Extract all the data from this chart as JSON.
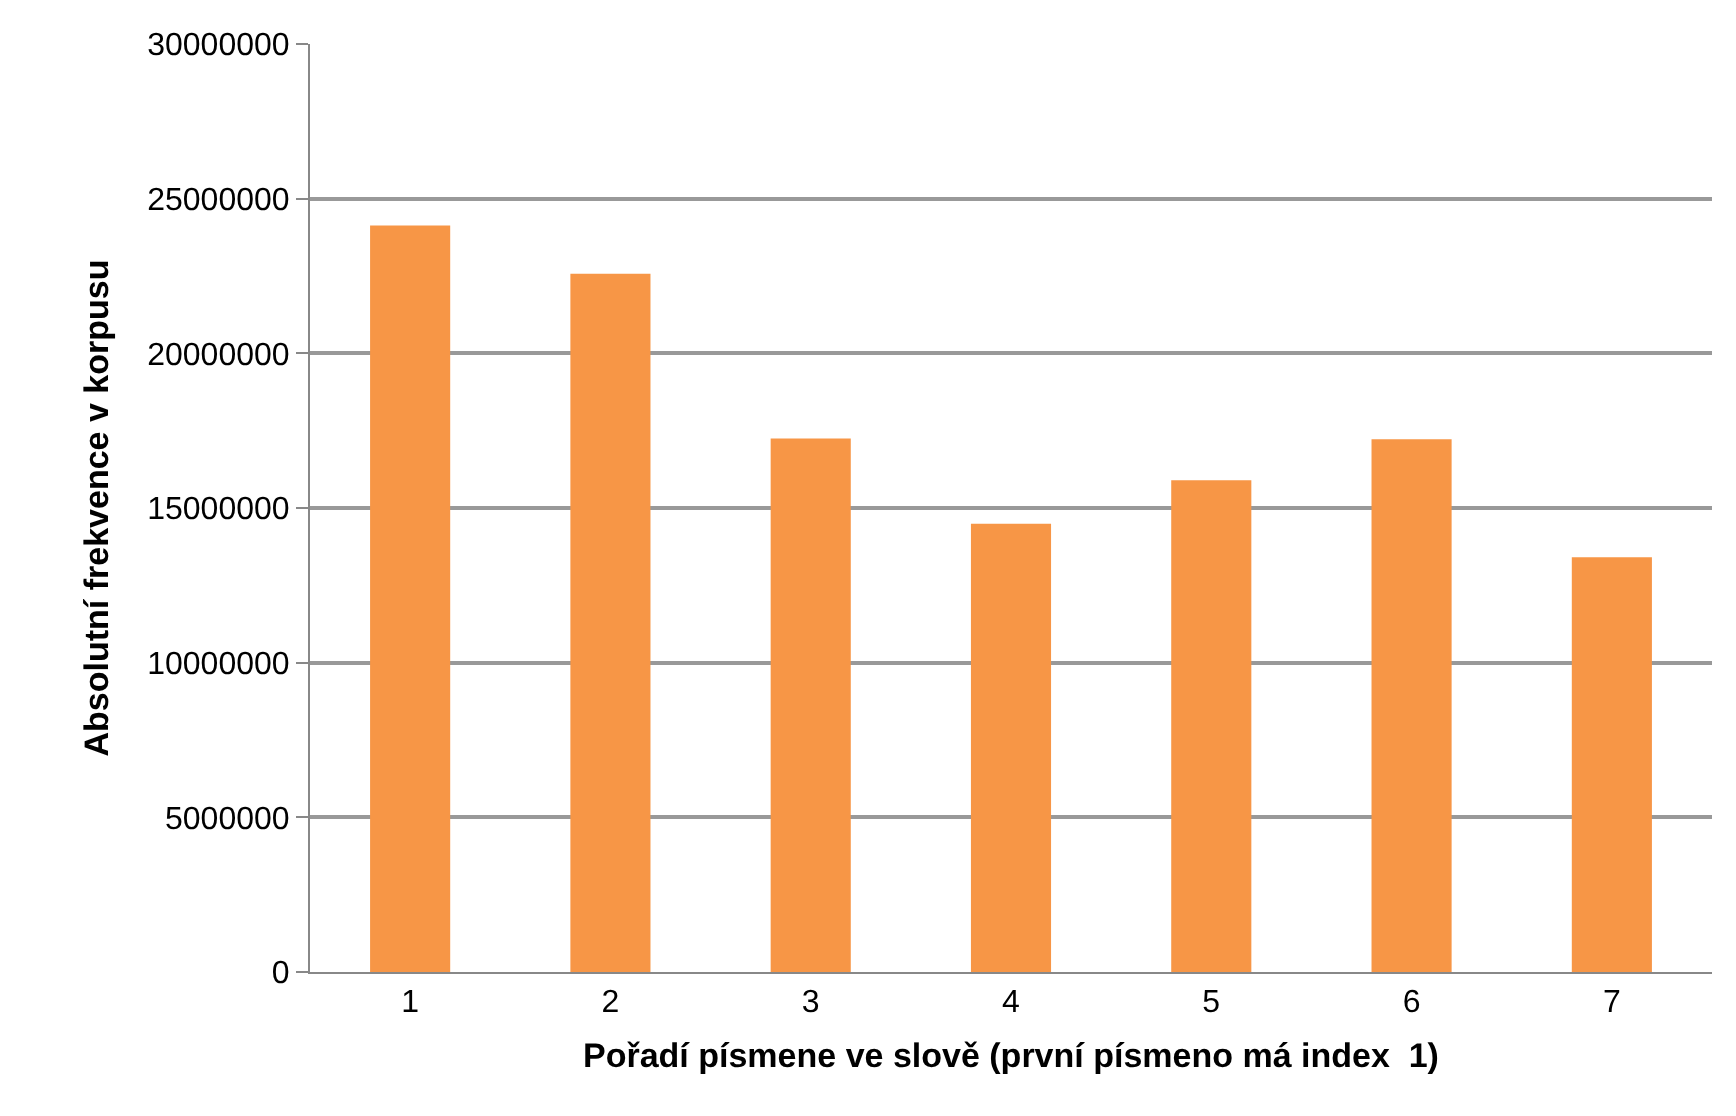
{
  "chart_data": {
    "type": "bar",
    "xlabel": "Pořadí písmene ve slově (první písmeno má index  1)",
    "ylabel": "Absolutní frekvence v korpusu",
    "categories": [
      "1",
      "2",
      "3",
      "4",
      "5",
      "6",
      "7"
    ],
    "values": [
      24130000,
      22570000,
      17250000,
      14490000,
      15900000,
      17220000,
      13410000
    ],
    "color": "#f79646",
    "ylim": [
      0,
      30000000
    ],
    "yticks": [
      0,
      5000000,
      10000000,
      15000000,
      20000000,
      25000000,
      30000000
    ],
    "grid": "y",
    "legend": false
  }
}
